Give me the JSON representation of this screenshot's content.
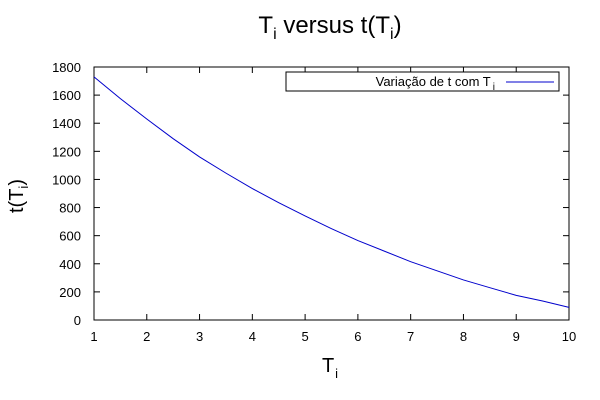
{
  "chart_data": {
    "type": "line",
    "title": {
      "main": "T",
      "sub": "i",
      "rest": " versus t(T",
      "sub2": "i",
      "close": ")"
    },
    "xlabel": {
      "main": "T",
      "sub": "i"
    },
    "ylabel": {
      "main": "t(T",
      "sub": "i",
      "close": ")"
    },
    "xlim": [
      1,
      10
    ],
    "ylim": [
      0,
      1800
    ],
    "xticks": [
      1,
      2,
      3,
      4,
      5,
      6,
      7,
      8,
      9,
      10
    ],
    "yticks": [
      0,
      200,
      400,
      600,
      800,
      1000,
      1200,
      1400,
      1600,
      1800
    ],
    "grid": false,
    "legend_position": "top-right",
    "series": [
      {
        "name": {
          "main": "Variação de t com T",
          "sub": "i"
        },
        "color": "#0000cc",
        "x": [
          1,
          1.5,
          2,
          2.5,
          3,
          3.5,
          4,
          4.5,
          5,
          5.5,
          6,
          6.5,
          7,
          7.5,
          8,
          8.5,
          9,
          9.5,
          10
        ],
        "y": [
          1730,
          1575,
          1430,
          1290,
          1160,
          1045,
          935,
          835,
          740,
          650,
          565,
          490,
          415,
          350,
          285,
          230,
          175,
          135,
          90
        ]
      }
    ]
  }
}
